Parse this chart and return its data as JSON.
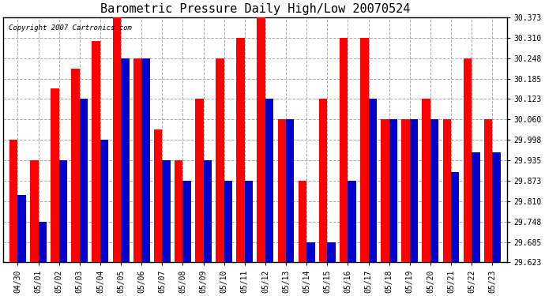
{
  "title": "Barometric Pressure Daily High/Low 20070524",
  "copyright": "Copyright 2007 Cartronics.com",
  "labels": [
    "04/30",
    "05/01",
    "05/02",
    "05/03",
    "05/04",
    "05/05",
    "05/06",
    "05/07",
    "05/08",
    "05/09",
    "05/10",
    "05/11",
    "05/12",
    "05/13",
    "05/14",
    "05/15",
    "05/16",
    "05/17",
    "05/18",
    "05/19",
    "05/20",
    "05/21",
    "05/22",
    "05/23"
  ],
  "highs": [
    29.998,
    29.935,
    30.155,
    30.215,
    30.3,
    30.373,
    30.248,
    30.03,
    29.935,
    30.123,
    30.248,
    30.31,
    30.373,
    30.06,
    29.873,
    30.123,
    30.31,
    30.31,
    30.06,
    30.06,
    30.123,
    30.06,
    30.248,
    30.06
  ],
  "lows": [
    29.83,
    29.748,
    29.935,
    30.123,
    29.998,
    30.248,
    30.248,
    29.935,
    29.873,
    29.935,
    29.873,
    29.873,
    30.123,
    30.06,
    29.685,
    29.685,
    29.873,
    30.123,
    30.06,
    30.06,
    30.06,
    29.9,
    29.96,
    29.96
  ],
  "high_color": "#ff0000",
  "low_color": "#0000cc",
  "bg_color": "#ffffff",
  "plot_bg_color": "#ffffff",
  "grid_color": "#aaaaaa",
  "title_fontsize": 11,
  "ymin": 29.623,
  "ymax": 30.373,
  "yticks": [
    29.623,
    29.685,
    29.748,
    29.81,
    29.873,
    29.935,
    29.998,
    30.06,
    30.123,
    30.185,
    30.248,
    30.31,
    30.373
  ]
}
